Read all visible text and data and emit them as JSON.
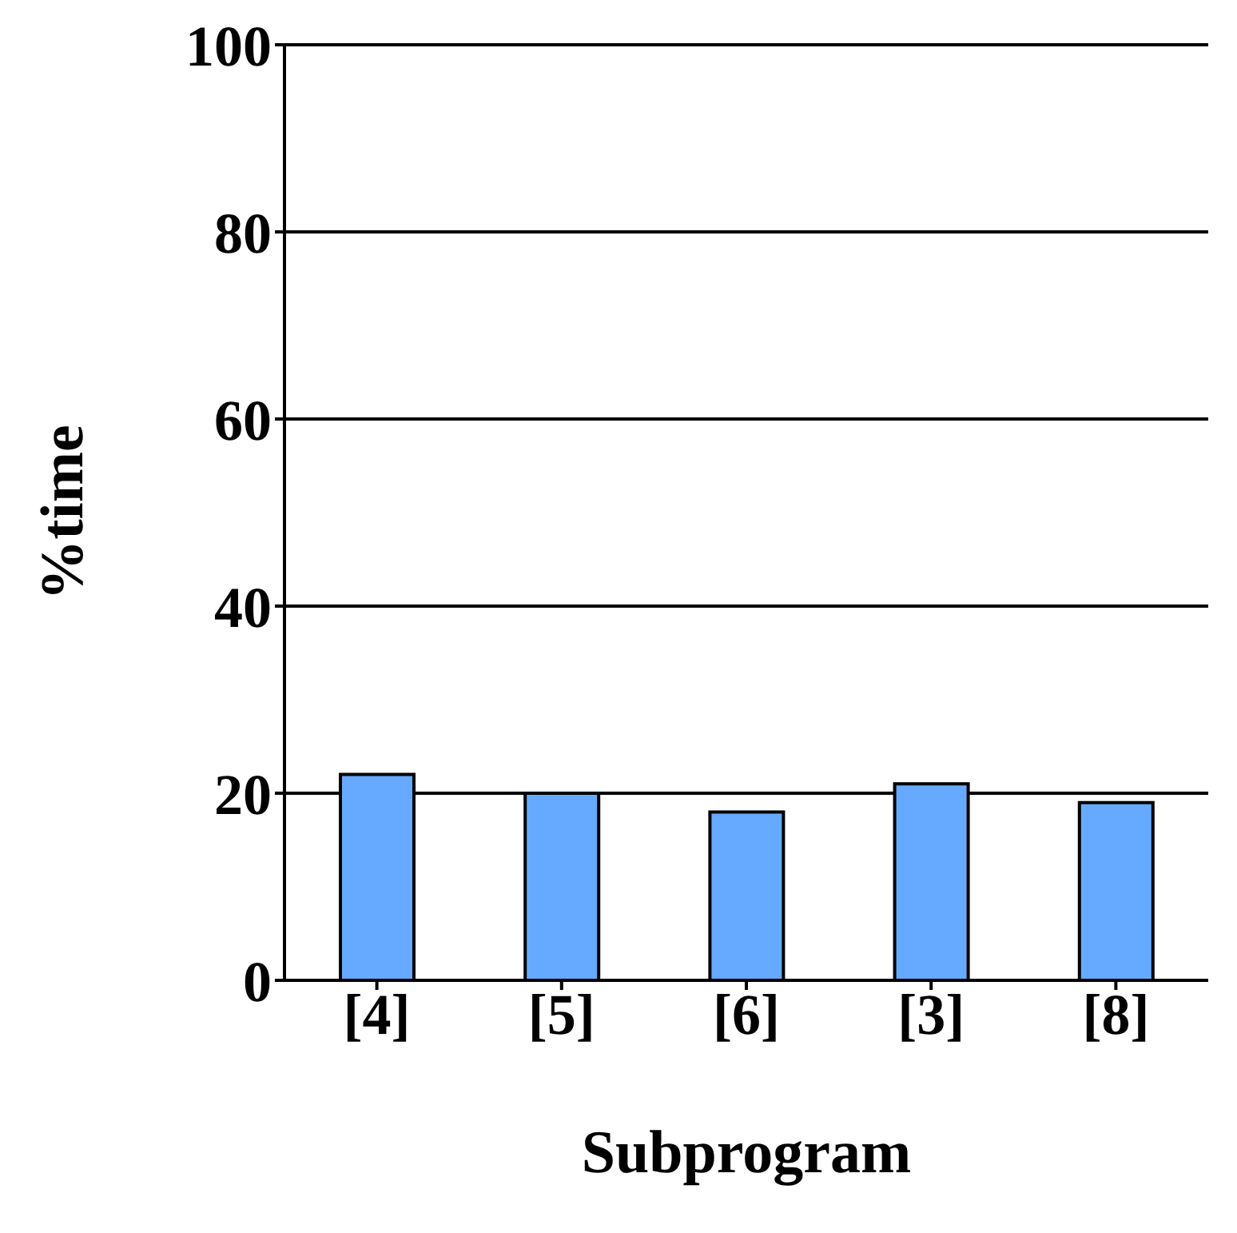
{
  "chart_data": {
    "type": "bar",
    "xlabel": "Subprogram",
    "ylabel": "%time",
    "categories": [
      "[4]",
      "[5]",
      "[6]",
      "[3]",
      "[8]"
    ],
    "values": [
      22,
      20,
      18,
      21,
      19
    ],
    "color": "#66aaff",
    "ylim": [
      0,
      100
    ],
    "yticks": [
      0,
      20,
      40,
      60,
      80,
      100
    ],
    "grid": "y"
  }
}
